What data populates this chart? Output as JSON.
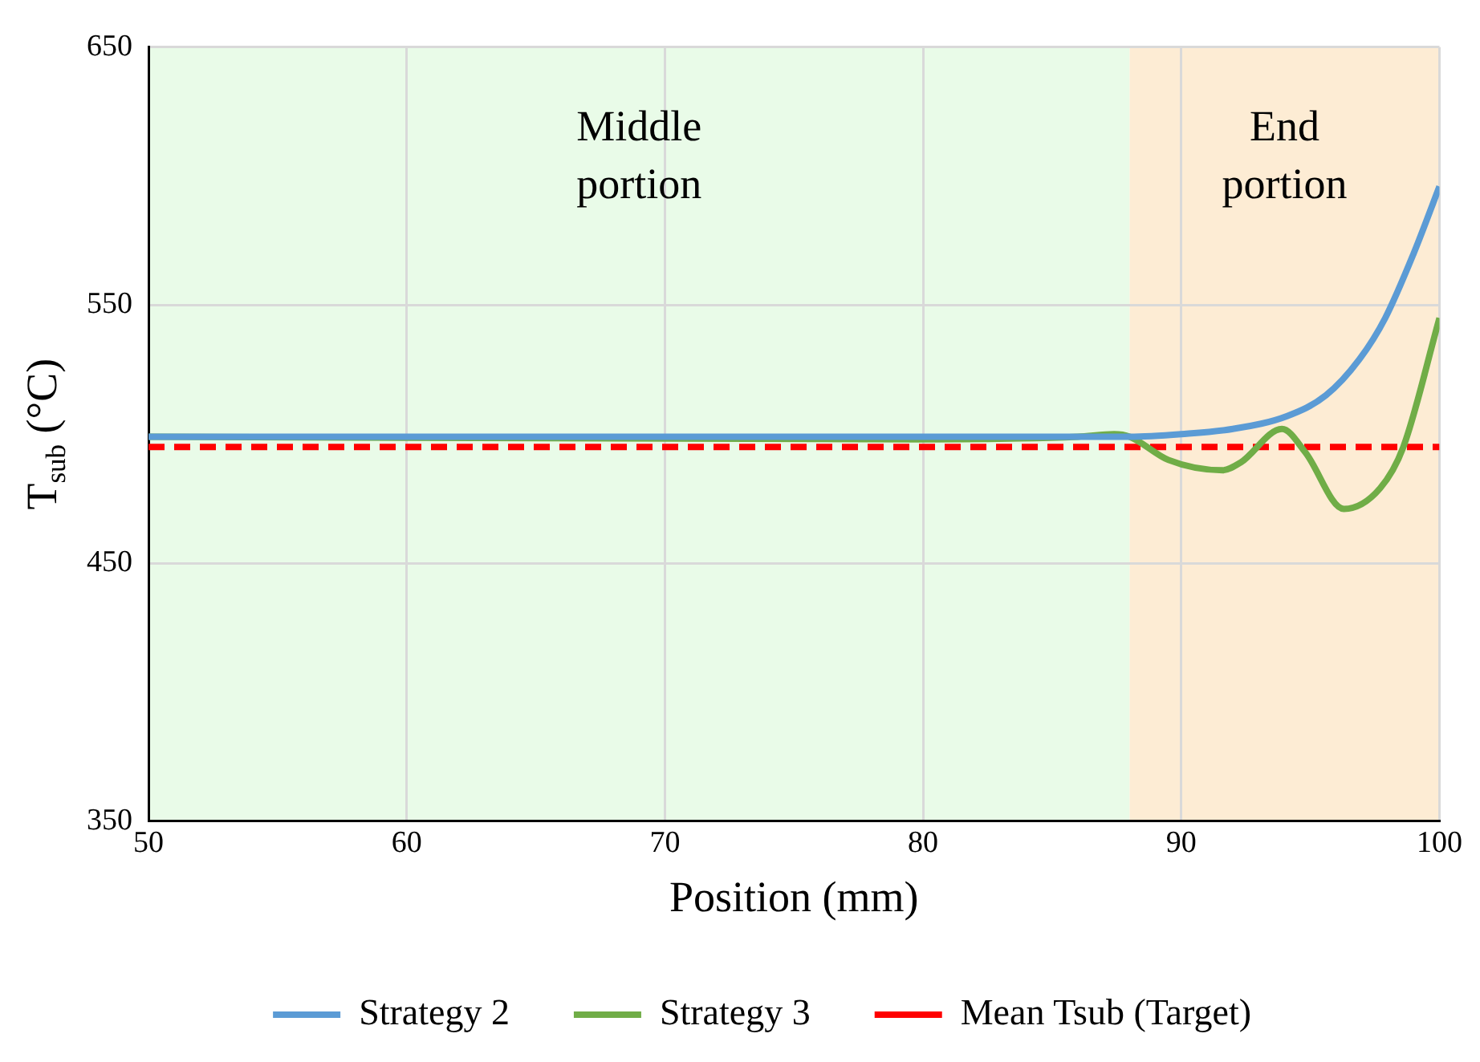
{
  "chart_data": {
    "type": "line",
    "xlabel": "Position (mm)",
    "ylabel": "T$_{sub}$ (°C)",
    "xlim": [
      50,
      100
    ],
    "xticks": [
      50,
      60,
      70,
      80,
      90,
      100
    ],
    "ylim": [
      350,
      650
    ],
    "yticks": [
      350,
      450,
      550,
      650
    ],
    "grid": true,
    "legend": "bottom",
    "marker": "none",
    "series": [
      {
        "name": "Strategy 2",
        "color": "#5b9bd5",
        "line_style": "solid",
        "x": [
          50,
          60,
          70,
          80,
          88,
          90,
          92,
          94.1,
          95.6,
          96.9,
          97.9,
          99,
          100
        ],
        "values": [
          499,
          499,
          499,
          499,
          499,
          500,
          502,
          507,
          515,
          529,
          545,
          570,
          596
        ]
      },
      {
        "name": "Strategy 3",
        "color": "#70ad47",
        "line_style": "solid",
        "x": [
          50,
          80,
          86,
          87.4,
          88,
          89.5,
          91.6,
          92.3,
          93.9,
          94.8,
          96.3,
          97.7,
          98.6,
          100
        ],
        "values": [
          499,
          498,
          499,
          500,
          499,
          490,
          486,
          489,
          502,
          493,
          471,
          479,
          495,
          545
        ]
      },
      {
        "name": "Mean Tsub (Target)",
        "color": "#ff0000",
        "line_style": "dashed",
        "x": [
          50,
          100
        ],
        "values": [
          495,
          495
        ]
      }
    ],
    "bands": [
      {
        "axis": "x",
        "from": 50,
        "to": 88,
        "label": "Middle portion",
        "color": "#e9fbe8"
      },
      {
        "axis": "x",
        "from": 88,
        "to": 100,
        "label": "End portion",
        "color": "#fdecd4"
      }
    ]
  }
}
